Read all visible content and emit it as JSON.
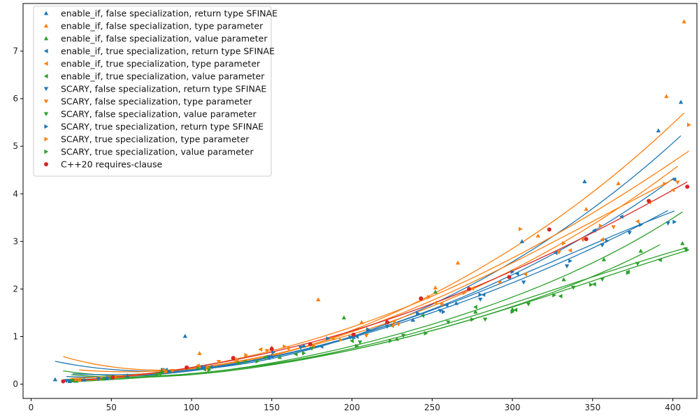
{
  "chart_data": {
    "type": "scatter",
    "title": "",
    "xlabel": "",
    "ylabel": "",
    "xlim": [
      -5,
      415
    ],
    "ylim": [
      -0.3,
      8.0
    ],
    "grid": false,
    "legend_placement": "top-left",
    "x_ticks": [
      "0",
      "50",
      "100",
      "150",
      "200",
      "250",
      "300",
      "350",
      "400"
    ],
    "y_ticks": [
      "0",
      "1",
      "2",
      "3",
      "4",
      "5",
      "6",
      "7"
    ],
    "series": [
      {
        "name": "enable_if, false specialization, return type SFINAE",
        "color": "#1f77b4",
        "marker": "triangle-up",
        "points": [
          [
            15,
            0.1
          ],
          [
            24,
            0.06
          ],
          [
            33,
            0.09
          ],
          [
            47,
            0.12
          ],
          [
            60,
            0.18
          ],
          [
            96,
            1.01
          ],
          [
            109,
            0.36
          ],
          [
            150,
            0.59
          ],
          [
            170,
            0.81
          ],
          [
            201,
            0.99
          ],
          [
            238,
            1.35
          ],
          [
            265,
            1.7
          ],
          [
            306,
            3.0
          ],
          [
            345,
            4.26
          ],
          [
            391,
            5.33
          ],
          [
            405,
            5.93
          ]
        ],
        "fit": [
          [
            15,
            0.48
          ],
          [
            100,
            0.3
          ],
          [
            200,
            1.0
          ],
          [
            300,
            2.57
          ],
          [
            405,
            5.22
          ]
        ]
      },
      {
        "name": "enable_if, false specialization, type parameter",
        "color": "#ff7f0e",
        "marker": "triangle-up",
        "points": [
          [
            30,
            0.09
          ],
          [
            50,
            0.14
          ],
          [
            84,
            0.27
          ],
          [
            105,
            0.65
          ],
          [
            128,
            0.52
          ],
          [
            150,
            0.77
          ],
          [
            179,
            1.78
          ],
          [
            206,
            1.3
          ],
          [
            252,
            2.03
          ],
          [
            266,
            2.55
          ],
          [
            316,
            3.12
          ],
          [
            346,
            3.68
          ],
          [
            366,
            4.22
          ],
          [
            396,
            6.05
          ],
          [
            407,
            7.62
          ]
        ],
        "fit": [
          [
            20,
            0.58
          ],
          [
            100,
            0.32
          ],
          [
            200,
            1.13
          ],
          [
            300,
            2.85
          ],
          [
            407,
            5.7
          ]
        ]
      },
      {
        "name": "enable_if, false specialization, value parameter",
        "color": "#2ca02c",
        "marker": "triangle-up",
        "points": [
          [
            28,
            0.07
          ],
          [
            45,
            0.12
          ],
          [
            78,
            0.22
          ],
          [
            104,
            0.35
          ],
          [
            129,
            0.45
          ],
          [
            155,
            0.57
          ],
          [
            195,
            1.4
          ],
          [
            228,
            0.95
          ],
          [
            252,
            1.94
          ],
          [
            277,
            1.52
          ],
          [
            300,
            1.57
          ],
          [
            332,
            2.2
          ],
          [
            357,
            2.62
          ],
          [
            380,
            2.8
          ],
          [
            406,
            2.96
          ]
        ],
        "fit": [
          [
            20,
            0.28
          ],
          [
            100,
            0.22
          ],
          [
            200,
            0.8
          ],
          [
            300,
            1.83
          ],
          [
            406,
            3.62
          ]
        ]
      },
      {
        "name": "enable_if, true specialization, return type SFINAE",
        "color": "#1f77b4",
        "marker": "triangle-left",
        "points": [
          [
            26,
            0.07
          ],
          [
            45,
            0.12
          ],
          [
            84,
            0.3
          ],
          [
            112,
            0.36
          ],
          [
            148,
            0.55
          ],
          [
            181,
            0.79
          ],
          [
            203,
            1.0
          ],
          [
            225,
            1.23
          ],
          [
            259,
            1.66
          ],
          [
            282,
            1.88
          ],
          [
            303,
            2.32
          ],
          [
            327,
            2.76
          ],
          [
            351,
            3.23
          ],
          [
            368,
            3.52
          ],
          [
            401,
            4.3
          ]
        ],
        "fit": [
          [
            26,
            0.22
          ],
          [
            100,
            0.3
          ],
          [
            200,
            1.0
          ],
          [
            300,
            2.3
          ],
          [
            401,
            4.34
          ]
        ]
      },
      {
        "name": "enable_if, true specialization, type parameter",
        "color": "#ff7f0e",
        "marker": "triangle-left",
        "points": [
          [
            30,
            0.09
          ],
          [
            52,
            0.15
          ],
          [
            84,
            0.27
          ],
          [
            104,
            0.39
          ],
          [
            143,
            0.73
          ],
          [
            160,
            0.75
          ],
          [
            188,
            0.96
          ],
          [
            226,
            1.32
          ],
          [
            252,
            1.71
          ],
          [
            275,
            2.01
          ],
          [
            308,
            2.31
          ],
          [
            336,
            2.81
          ],
          [
            356,
            3.04
          ],
          [
            378,
            3.42
          ],
          [
            400,
            4.08
          ]
        ],
        "fit": [
          [
            30,
            0.3
          ],
          [
            100,
            0.33
          ],
          [
            200,
            1.1
          ],
          [
            300,
            2.55
          ],
          [
            400,
            4.3
          ]
        ]
      },
      {
        "name": "enable_if, true specialization, value parameter",
        "color": "#2ca02c",
        "marker": "triangle-left",
        "points": [
          [
            28,
            0.07
          ],
          [
            45,
            0.12
          ],
          [
            80,
            0.22
          ],
          [
            108,
            0.31
          ],
          [
            133,
            0.47
          ],
          [
            165,
            0.63
          ],
          [
            200,
            0.91
          ],
          [
            225,
            1.23
          ],
          [
            244,
            1.44
          ],
          [
            277,
            1.62
          ],
          [
            302,
            1.56
          ],
          [
            330,
            1.85
          ],
          [
            351,
            2.1
          ],
          [
            372,
            2.36
          ],
          [
            392,
            2.61
          ]
        ],
        "fit": [
          [
            25,
            0.2
          ],
          [
            100,
            0.2
          ],
          [
            200,
            0.72
          ],
          [
            300,
            1.63
          ],
          [
            392,
            2.93
          ]
        ]
      },
      {
        "name": "SCARY, false specialization, return type SFINAE",
        "color": "#1f77b4",
        "marker": "triangle-down",
        "points": [
          [
            22,
            0.07
          ],
          [
            42,
            0.11
          ],
          [
            82,
            0.3
          ],
          [
            108,
            0.34
          ],
          [
            148,
            0.57
          ],
          [
            168,
            0.77
          ],
          [
            199,
            0.98
          ],
          [
            222,
            1.21
          ],
          [
            255,
            1.54
          ],
          [
            280,
            1.78
          ],
          [
            307,
            2.14
          ],
          [
            334,
            2.48
          ],
          [
            356,
            2.92
          ],
          [
            373,
            3.18
          ],
          [
            397,
            3.38
          ]
        ],
        "fit": [
          [
            22,
            0.16
          ],
          [
            100,
            0.28
          ],
          [
            200,
            0.98
          ],
          [
            300,
            2.13
          ],
          [
            397,
            3.65
          ]
        ]
      },
      {
        "name": "SCARY, false specialization, type parameter",
        "color": "#ff7f0e",
        "marker": "triangle-down",
        "points": [
          [
            25,
            0.08
          ],
          [
            50,
            0.14
          ],
          [
            88,
            0.28
          ],
          [
            117,
            0.47
          ],
          [
            147,
            0.7
          ],
          [
            176,
            0.78
          ],
          [
            209,
            1.02
          ],
          [
            229,
            1.26
          ],
          [
            256,
            1.67
          ],
          [
            292,
            2.13
          ],
          [
            329,
            2.77
          ],
          [
            344,
            3.03
          ],
          [
            363,
            3.3
          ],
          [
            386,
            3.82
          ],
          [
            403,
            4.24
          ]
        ],
        "fit": [
          [
            25,
            0.12
          ],
          [
            100,
            0.33
          ],
          [
            200,
            1.05
          ],
          [
            300,
            2.4
          ],
          [
            403,
            4.58
          ]
        ]
      },
      {
        "name": "SCARY, false specialization, value parameter",
        "color": "#2ca02c",
        "marker": "triangle-down",
        "points": [
          [
            25,
            0.07
          ],
          [
            50,
            0.14
          ],
          [
            82,
            0.25
          ],
          [
            111,
            0.33
          ],
          [
            146,
            0.55
          ],
          [
            175,
            0.75
          ],
          [
            205,
            0.88
          ],
          [
            232,
            1.02
          ],
          [
            260,
            1.3
          ],
          [
            283,
            1.36
          ],
          [
            310,
            1.68
          ],
          [
            338,
            2.03
          ],
          [
            356,
            2.2
          ],
          [
            378,
            2.53
          ],
          [
            408,
            2.84
          ]
        ],
        "fit": [
          [
            25,
            0.1
          ],
          [
            100,
            0.22
          ],
          [
            200,
            0.75
          ],
          [
            300,
            1.7
          ],
          [
            408,
            2.86
          ]
        ]
      },
      {
        "name": "SCARY, true specialization, return type SFINAE",
        "color": "#1f77b4",
        "marker": "triangle-right",
        "points": [
          [
            24,
            0.07
          ],
          [
            48,
            0.13
          ],
          [
            86,
            0.27
          ],
          [
            107,
            0.36
          ],
          [
            151,
            0.67
          ],
          [
            185,
            0.96
          ],
          [
            210,
            1.15
          ],
          [
            241,
            1.49
          ],
          [
            257,
            1.52
          ],
          [
            280,
            1.88
          ],
          [
            300,
            2.36
          ],
          [
            336,
            2.59
          ],
          [
            359,
            3.01
          ],
          [
            380,
            3.35
          ],
          [
            401,
            3.41
          ]
        ],
        "fit": [
          [
            24,
            0.08
          ],
          [
            100,
            0.3
          ],
          [
            200,
            1.0
          ],
          [
            300,
            2.22
          ],
          [
            401,
            3.64
          ]
        ]
      },
      {
        "name": "SCARY, true specialization, type parameter",
        "color": "#ff7f0e",
        "marker": "triangle-right",
        "points": [
          [
            28,
            0.09
          ],
          [
            50,
            0.15
          ],
          [
            83,
            0.29
          ],
          [
            110,
            0.34
          ],
          [
            134,
            0.61
          ],
          [
            158,
            0.79
          ],
          [
            193,
            0.93
          ],
          [
            226,
            1.24
          ],
          [
            248,
            1.83
          ],
          [
            270,
            1.92
          ],
          [
            305,
            3.26
          ],
          [
            332,
            2.96
          ],
          [
            355,
            3.33
          ],
          [
            395,
            4.21
          ],
          [
            410,
            5.45
          ]
        ],
        "fit": [
          [
            28,
            0.06
          ],
          [
            100,
            0.35
          ],
          [
            200,
            1.2
          ],
          [
            300,
            2.65
          ],
          [
            410,
            4.9
          ]
        ]
      },
      {
        "name": "SCARY, true specialization, value parameter",
        "color": "#2ca02c",
        "marker": "triangle-right",
        "points": [
          [
            26,
            0.07
          ],
          [
            50,
            0.13
          ],
          [
            82,
            0.26
          ],
          [
            111,
            0.3
          ],
          [
            141,
            0.48
          ],
          [
            170,
            0.65
          ],
          [
            203,
            0.8
          ],
          [
            224,
            0.91
          ],
          [
            246,
            1.07
          ],
          [
            275,
            1.36
          ],
          [
            300,
            1.52
          ],
          [
            326,
            1.87
          ],
          [
            349,
            2.09
          ],
          [
            372,
            2.34
          ],
          [
            409,
            2.82
          ]
        ],
        "fit": [
          [
            26,
            0.05
          ],
          [
            100,
            0.22
          ],
          [
            200,
            0.72
          ],
          [
            300,
            1.62
          ],
          [
            409,
            2.81
          ]
        ]
      },
      {
        "name": "C++20 requires-clause",
        "color": "#d62728",
        "marker": "circle",
        "points": [
          [
            20,
            0.06
          ],
          [
            51,
            0.14
          ],
          [
            97,
            0.35
          ],
          [
            126,
            0.55
          ],
          [
            150,
            0.74
          ],
          [
            174,
            0.84
          ],
          [
            201,
            1.04
          ],
          [
            222,
            1.3
          ],
          [
            243,
            1.8
          ],
          [
            273,
            2.0
          ],
          [
            298,
            2.25
          ],
          [
            323,
            3.25
          ],
          [
            346,
            3.05
          ],
          [
            385,
            3.85
          ],
          [
            409,
            4.15
          ]
        ],
        "fit": [
          [
            20,
            0.06
          ],
          [
            100,
            0.35
          ],
          [
            200,
            1.12
          ],
          [
            300,
            2.38
          ],
          [
            409,
            4.25
          ]
        ]
      }
    ]
  }
}
